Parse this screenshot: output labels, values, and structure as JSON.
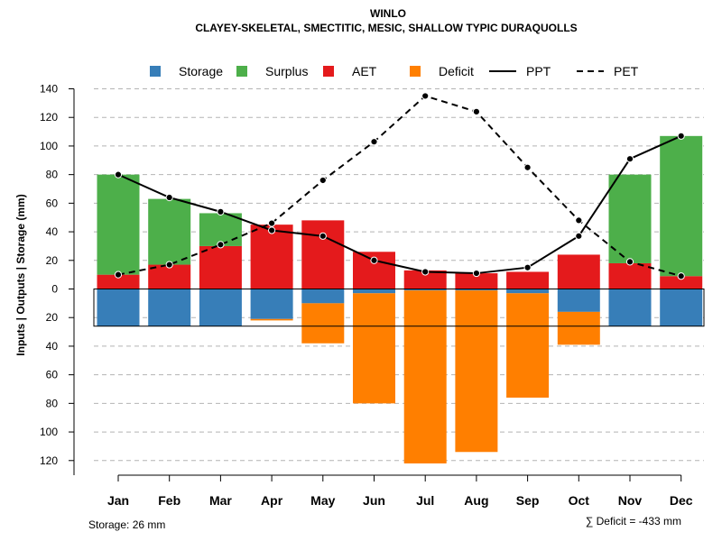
{
  "chart_data": {
    "type": "bar",
    "title": "WINLO",
    "subtitle": "CLAYEY-SKELETAL, SMECTITIC, MESIC, SHALLOW TYPIC DURAQUOLLS",
    "ylabel": "Inputs | Outputs | Storage    (mm)",
    "ylim": [
      -130,
      140
    ],
    "yticks": [
      -120,
      -100,
      -80,
      -60,
      -40,
      -20,
      0,
      20,
      40,
      60,
      80,
      100,
      120,
      140
    ],
    "ytick_labels": [
      "120",
      "100",
      "80",
      "60",
      "40",
      "20",
      "0",
      "20",
      "40",
      "60",
      "80",
      "100",
      "120",
      "140"
    ],
    "grid": true,
    "categories": [
      "Jan",
      "Feb",
      "Mar",
      "Apr",
      "May",
      "Jun",
      "Jul",
      "Aug",
      "Sep",
      "Oct",
      "Nov",
      "Dec"
    ],
    "legend": [
      {
        "label": "Storage",
        "color": "#377eb8",
        "kind": "box"
      },
      {
        "label": "Surplus",
        "color": "#4daf4a",
        "kind": "box"
      },
      {
        "label": "AET",
        "color": "#e41a1c",
        "kind": "box"
      },
      {
        "label": "Deficit",
        "color": "#ff7f00",
        "kind": "box"
      },
      {
        "label": "PPT",
        "color": "#000000",
        "kind": "solid"
      },
      {
        "label": "PET",
        "color": "#000000",
        "kind": "dashed"
      }
    ],
    "series": {
      "aet": [
        10,
        17,
        30,
        45,
        48,
        26,
        13,
        11,
        12,
        24,
        18,
        9
      ],
      "surplus": [
        70,
        46,
        23,
        0,
        0,
        0,
        0,
        0,
        0,
        0,
        62,
        98
      ],
      "storage": [
        26,
        26,
        26,
        21,
        10,
        3,
        1,
        1,
        3,
        16,
        26,
        26
      ],
      "deficit": [
        0,
        0,
        0,
        1,
        28,
        77,
        121,
        113,
        73,
        23,
        0,
        0
      ],
      "ppt": [
        80,
        64,
        54,
        41,
        37,
        20,
        12,
        11,
        15,
        37,
        91,
        107
      ],
      "pet": [
        10,
        17,
        31,
        46,
        76,
        103,
        135,
        124,
        85,
        48,
        19,
        9
      ]
    },
    "storage_capacity": 26,
    "footer_left": "Storage: 26 mm",
    "footer_right": "∑ Deficit = -433 mm"
  }
}
